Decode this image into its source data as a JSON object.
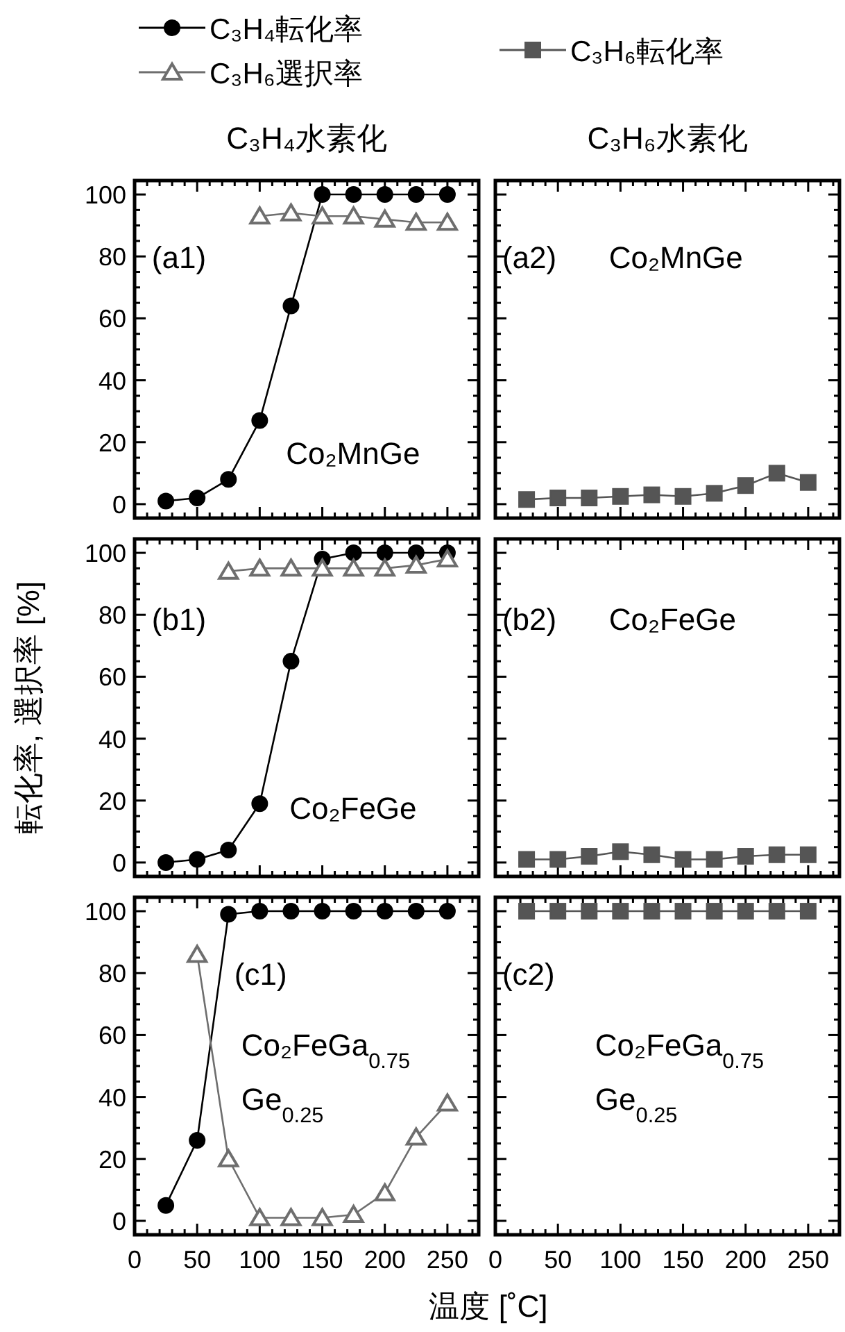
{
  "chart_data": [
    {
      "type": "line",
      "title": "C₃H₄水素化",
      "legend": "top",
      "tick_labels": "y",
      "xlim": [
        0,
        275
      ],
      "ylim": [
        -4.5,
        104.5
      ],
      "xticks": [
        0,
        {
          "value": 10,
          "label": null
        },
        {
          "value": 20,
          "label": null
        },
        {
          "value": 30,
          "label": null
        },
        {
          "value": 40,
          "label": null
        },
        50,
        {
          "value": 60,
          "label": null
        },
        {
          "value": 70,
          "label": null
        },
        {
          "value": 80,
          "label": null
        },
        {
          "value": 90,
          "label": null
        },
        100,
        {
          "value": 110,
          "label": null
        },
        {
          "value": 120,
          "label": null
        },
        {
          "value": 130,
          "label": null
        },
        {
          "value": 140,
          "label": null
        },
        150,
        {
          "value": 160,
          "label": null
        },
        {
          "value": 170,
          "label": null
        },
        {
          "value": 180,
          "label": null
        },
        {
          "value": 190,
          "label": null
        },
        200,
        {
          "value": 210,
          "label": null
        },
        {
          "value": 220,
          "label": null
        },
        {
          "value": 230,
          "label": null
        },
        {
          "value": 240,
          "label": null
        },
        250,
        {
          "value": 260,
          "label": null
        },
        {
          "value": 270,
          "label": null
        }
      ],
      "yticks": [
        0,
        {
          "value": 5,
          "label": null
        },
        {
          "value": 10,
          "label": null
        },
        {
          "value": 15,
          "label": null
        },
        20,
        {
          "value": 25,
          "label": null
        },
        {
          "value": 30,
          "label": null
        },
        {
          "value": 35,
          "label": null
        },
        40,
        {
          "value": 45,
          "label": null
        },
        {
          "value": 50,
          "label": null
        },
        {
          "value": 55,
          "label": null
        },
        60,
        {
          "value": 65,
          "label": null
        },
        {
          "value": 70,
          "label": null
        },
        {
          "value": 75,
          "label": null
        },
        80,
        {
          "value": 85,
          "label": null
        },
        {
          "value": 90,
          "label": null
        },
        {
          "value": 95,
          "label": null
        },
        100
      ],
      "annotations": [
        "(a1)",
        "Co₂MnGe"
      ],
      "series": [
        {
          "name": "C₃H₄転化率",
          "color": "#000000",
          "marker": "circle",
          "x": [
            25,
            50,
            75,
            100,
            125,
            150,
            175,
            200,
            225,
            250
          ],
          "values": [
            1,
            2,
            8,
            27,
            64,
            100,
            100,
            100,
            100,
            100
          ]
        },
        {
          "name": "C₃H₆選択率",
          "color": "#6e6e6e",
          "marker": "triangle",
          "x": [
            100,
            125,
            150,
            175,
            200,
            225,
            250
          ],
          "values": [
            93,
            94,
            93,
            93,
            92,
            91,
            91
          ]
        }
      ]
    },
    {
      "type": "line",
      "title": "C₃H₆水素化",
      "legend": "top",
      "tick_labels": false,
      "xlim": [
        0,
        275
      ],
      "ylim": [
        -4.5,
        104.5
      ],
      "xticks": [
        0,
        {
          "value": 10,
          "label": null
        },
        {
          "value": 20,
          "label": null
        },
        {
          "value": 30,
          "label": null
        },
        {
          "value": 40,
          "label": null
        },
        50,
        {
          "value": 60,
          "label": null
        },
        {
          "value": 70,
          "label": null
        },
        {
          "value": 80,
          "label": null
        },
        {
          "value": 90,
          "label": null
        },
        100,
        {
          "value": 110,
          "label": null
        },
        {
          "value": 120,
          "label": null
        },
        {
          "value": 130,
          "label": null
        },
        {
          "value": 140,
          "label": null
        },
        150,
        {
          "value": 160,
          "label": null
        },
        {
          "value": 170,
          "label": null
        },
        {
          "value": 180,
          "label": null
        },
        {
          "value": 190,
          "label": null
        },
        200,
        {
          "value": 210,
          "label": null
        },
        {
          "value": 220,
          "label": null
        },
        {
          "value": 230,
          "label": null
        },
        {
          "value": 240,
          "label": null
        },
        250,
        {
          "value": 260,
          "label": null
        },
        {
          "value": 270,
          "label": null
        }
      ],
      "yticks": [
        0,
        {
          "value": 5,
          "label": null
        },
        {
          "value": 10,
          "label": null
        },
        {
          "value": 15,
          "label": null
        },
        20,
        {
          "value": 25,
          "label": null
        },
        {
          "value": 30,
          "label": null
        },
        {
          "value": 35,
          "label": null
        },
        40,
        {
          "value": 45,
          "label": null
        },
        {
          "value": 50,
          "label": null
        },
        {
          "value": 55,
          "label": null
        },
        60,
        {
          "value": 65,
          "label": null
        },
        {
          "value": 70,
          "label": null
        },
        {
          "value": 75,
          "label": null
        },
        80,
        {
          "value": 85,
          "label": null
        },
        {
          "value": 90,
          "label": null
        },
        {
          "value": 95,
          "label": null
        },
        100
      ],
      "annotations": [
        "(a2)",
        "Co₂MnGe"
      ],
      "series": [
        {
          "name": "C₃H₆転化率",
          "color": "#555555",
          "marker": "square",
          "x": [
            25,
            50,
            75,
            100,
            125,
            150,
            175,
            200,
            225,
            250
          ],
          "values": [
            1.5,
            2,
            2,
            2.5,
            3,
            2.5,
            3.5,
            6,
            10,
            7
          ]
        }
      ]
    },
    {
      "type": "line",
      "ylabel": "転化率, 選択率 [%]",
      "tick_labels": "y",
      "xlim": [
        0,
        275
      ],
      "ylim": [
        -4.5,
        104.5
      ],
      "xticks": [
        0,
        {
          "value": 10,
          "label": null
        },
        {
          "value": 20,
          "label": null
        },
        {
          "value": 30,
          "label": null
        },
        {
          "value": 40,
          "label": null
        },
        50,
        {
          "value": 60,
          "label": null
        },
        {
          "value": 70,
          "label": null
        },
        {
          "value": 80,
          "label": null
        },
        {
          "value": 90,
          "label": null
        },
        100,
        {
          "value": 110,
          "label": null
        },
        {
          "value": 120,
          "label": null
        },
        {
          "value": 130,
          "label": null
        },
        {
          "value": 140,
          "label": null
        },
        150,
        {
          "value": 160,
          "label": null
        },
        {
          "value": 170,
          "label": null
        },
        {
          "value": 180,
          "label": null
        },
        {
          "value": 190,
          "label": null
        },
        200,
        {
          "value": 210,
          "label": null
        },
        {
          "value": 220,
          "label": null
        },
        {
          "value": 230,
          "label": null
        },
        {
          "value": 240,
          "label": null
        },
        250,
        {
          "value": 260,
          "label": null
        },
        {
          "value": 270,
          "label": null
        }
      ],
      "yticks": [
        0,
        {
          "value": 5,
          "label": null
        },
        {
          "value": 10,
          "label": null
        },
        {
          "value": 15,
          "label": null
        },
        20,
        {
          "value": 25,
          "label": null
        },
        {
          "value": 30,
          "label": null
        },
        {
          "value": 35,
          "label": null
        },
        40,
        {
          "value": 45,
          "label": null
        },
        {
          "value": 50,
          "label": null
        },
        {
          "value": 55,
          "label": null
        },
        60,
        {
          "value": 65,
          "label": null
        },
        {
          "value": 70,
          "label": null
        },
        {
          "value": 75,
          "label": null
        },
        80,
        {
          "value": 85,
          "label": null
        },
        {
          "value": 90,
          "label": null
        },
        {
          "value": 95,
          "label": null
        },
        100
      ],
      "annotations": [
        "(b1)",
        "Co₂FeGe"
      ],
      "series": [
        {
          "color": "#000000",
          "marker": "circle",
          "x": [
            25,
            50,
            75,
            100,
            125,
            150,
            175,
            200,
            225,
            250
          ],
          "values": [
            0,
            1,
            4,
            19,
            65,
            98,
            100,
            100,
            100,
            100
          ]
        },
        {
          "color": "#6e6e6e",
          "marker": "triangle",
          "x": [
            75,
            100,
            125,
            150,
            175,
            200,
            225,
            250
          ],
          "values": [
            94,
            95,
            95,
            95,
            95,
            95,
            96,
            98
          ]
        }
      ]
    },
    {
      "type": "line",
      "tick_labels": false,
      "xlim": [
        0,
        275
      ],
      "ylim": [
        -4.5,
        104.5
      ],
      "xticks": [
        0,
        {
          "value": 10,
          "label": null
        },
        {
          "value": 20,
          "label": null
        },
        {
          "value": 30,
          "label": null
        },
        {
          "value": 40,
          "label": null
        },
        50,
        {
          "value": 60,
          "label": null
        },
        {
          "value": 70,
          "label": null
        },
        {
          "value": 80,
          "label": null
        },
        {
          "value": 90,
          "label": null
        },
        100,
        {
          "value": 110,
          "label": null
        },
        {
          "value": 120,
          "label": null
        },
        {
          "value": 130,
          "label": null
        },
        {
          "value": 140,
          "label": null
        },
        150,
        {
          "value": 160,
          "label": null
        },
        {
          "value": 170,
          "label": null
        },
        {
          "value": 180,
          "label": null
        },
        {
          "value": 190,
          "label": null
        },
        200,
        {
          "value": 210,
          "label": null
        },
        {
          "value": 220,
          "label": null
        },
        {
          "value": 230,
          "label": null
        },
        {
          "value": 240,
          "label": null
        },
        250,
        {
          "value": 260,
          "label": null
        },
        {
          "value": 270,
          "label": null
        }
      ],
      "yticks": [
        0,
        {
          "value": 5,
          "label": null
        },
        {
          "value": 10,
          "label": null
        },
        {
          "value": 15,
          "label": null
        },
        20,
        {
          "value": 25,
          "label": null
        },
        {
          "value": 30,
          "label": null
        },
        {
          "value": 35,
          "label": null
        },
        40,
        {
          "value": 45,
          "label": null
        },
        {
          "value": 50,
          "label": null
        },
        {
          "value": 55,
          "label": null
        },
        60,
        {
          "value": 65,
          "label": null
        },
        {
          "value": 70,
          "label": null
        },
        {
          "value": 75,
          "label": null
        },
        80,
        {
          "value": 85,
          "label": null
        },
        {
          "value": 90,
          "label": null
        },
        {
          "value": 95,
          "label": null
        },
        100
      ],
      "annotations": [
        "(b2)",
        "Co₂FeGe"
      ],
      "series": [
        {
          "color": "#555555",
          "marker": "square",
          "x": [
            25,
            50,
            75,
            100,
            125,
            150,
            175,
            200,
            225,
            250
          ],
          "values": [
            1,
            1,
            2,
            3.5,
            2.5,
            1,
            1,
            2,
            2.5,
            2.5
          ]
        }
      ]
    },
    {
      "type": "line",
      "xlabel": "温度 [˚C]",
      "xlim": [
        0,
        275
      ],
      "ylim": [
        -4.5,
        104.5
      ],
      "xticks": [
        0,
        {
          "value": 10,
          "label": null
        },
        {
          "value": 20,
          "label": null
        },
        {
          "value": 30,
          "label": null
        },
        {
          "value": 40,
          "label": null
        },
        50,
        {
          "value": 60,
          "label": null
        },
        {
          "value": 70,
          "label": null
        },
        {
          "value": 80,
          "label": null
        },
        {
          "value": 90,
          "label": null
        },
        100,
        {
          "value": 110,
          "label": null
        },
        {
          "value": 120,
          "label": null
        },
        {
          "value": 130,
          "label": null
        },
        {
          "value": 140,
          "label": null
        },
        150,
        {
          "value": 160,
          "label": null
        },
        {
          "value": 170,
          "label": null
        },
        {
          "value": 180,
          "label": null
        },
        {
          "value": 190,
          "label": null
        },
        200,
        {
          "value": 210,
          "label": null
        },
        {
          "value": 220,
          "label": null
        },
        {
          "value": 230,
          "label": null
        },
        {
          "value": 240,
          "label": null
        },
        250,
        {
          "value": 260,
          "label": null
        },
        {
          "value": 270,
          "label": null
        }
      ],
      "yticks": [
        0,
        {
          "value": 5,
          "label": null
        },
        {
          "value": 10,
          "label": null
        },
        {
          "value": 15,
          "label": null
        },
        20,
        {
          "value": 25,
          "label": null
        },
        {
          "value": 30,
          "label": null
        },
        {
          "value": 35,
          "label": null
        },
        40,
        {
          "value": 45,
          "label": null
        },
        {
          "value": 50,
          "label": null
        },
        {
          "value": 55,
          "label": null
        },
        60,
        {
          "value": 65,
          "label": null
        },
        {
          "value": 70,
          "label": null
        },
        {
          "value": 75,
          "label": null
        },
        80,
        {
          "value": 85,
          "label": null
        },
        {
          "value": 90,
          "label": null
        },
        {
          "value": 95,
          "label": null
        },
        100
      ],
      "annotations": [
        "(c1)",
        "Co₂FeGa$_{0.75}$",
        "Ge$_{0.25}$"
      ],
      "series": [
        {
          "color": "#000000",
          "marker": "circle",
          "x": [
            25,
            50,
            75,
            100,
            125,
            150,
            175,
            200,
            225,
            250
          ],
          "values": [
            5,
            26,
            99,
            100,
            100,
            100,
            100,
            100,
            100,
            100
          ]
        },
        {
          "color": "#6e6e6e",
          "marker": "triangle",
          "x": [
            50,
            75,
            100,
            125,
            150,
            175,
            200,
            225,
            250
          ],
          "values": [
            86,
            20,
            1,
            1,
            1,
            2,
            9,
            27,
            38
          ]
        }
      ]
    },
    {
      "type": "line",
      "tick_labels": "x",
      "xlim": [
        0,
        275
      ],
      "ylim": [
        -4.5,
        104.5
      ],
      "xticks": [
        0,
        {
          "value": 10,
          "label": null
        },
        {
          "value": 20,
          "label": null
        },
        {
          "value": 30,
          "label": null
        },
        {
          "value": 40,
          "label": null
        },
        50,
        {
          "value": 60,
          "label": null
        },
        {
          "value": 70,
          "label": null
        },
        {
          "value": 80,
          "label": null
        },
        {
          "value": 90,
          "label": null
        },
        100,
        {
          "value": 110,
          "label": null
        },
        {
          "value": 120,
          "label": null
        },
        {
          "value": 130,
          "label": null
        },
        {
          "value": 140,
          "label": null
        },
        150,
        {
          "value": 160,
          "label": null
        },
        {
          "value": 170,
          "label": null
        },
        {
          "value": 180,
          "label": null
        },
        {
          "value": 190,
          "label": null
        },
        200,
        {
          "value": 210,
          "label": null
        },
        {
          "value": 220,
          "label": null
        },
        {
          "value": 230,
          "label": null
        },
        {
          "value": 240,
          "label": null
        },
        250,
        {
          "value": 260,
          "label": null
        },
        {
          "value": 270,
          "label": null
        }
      ],
      "yticks": [
        0,
        {
          "value": 5,
          "label": null
        },
        {
          "value": 10,
          "label": null
        },
        {
          "value": 15,
          "label": null
        },
        20,
        {
          "value": 25,
          "label": null
        },
        {
          "value": 30,
          "label": null
        },
        {
          "value": 35,
          "label": null
        },
        40,
        {
          "value": 45,
          "label": null
        },
        {
          "value": 50,
          "label": null
        },
        {
          "value": 55,
          "label": null
        },
        60,
        {
          "value": 65,
          "label": null
        },
        {
          "value": 70,
          "label": null
        },
        {
          "value": 75,
          "label": null
        },
        80,
        {
          "value": 85,
          "label": null
        },
        {
          "value": 90,
          "label": null
        },
        {
          "value": 95,
          "label": null
        },
        100
      ],
      "annotations": [
        "(c2)",
        "Co₂FeGa$_{0.75}$",
        "Ge$_{0.25}$"
      ],
      "series": [
        {
          "color": "#555555",
          "marker": "square",
          "x": [
            25,
            50,
            75,
            100,
            125,
            150,
            175,
            200,
            225,
            250
          ],
          "values": [
            100,
            100,
            100,
            100,
            100,
            100,
            100,
            100,
            100,
            100
          ]
        }
      ]
    }
  ]
}
